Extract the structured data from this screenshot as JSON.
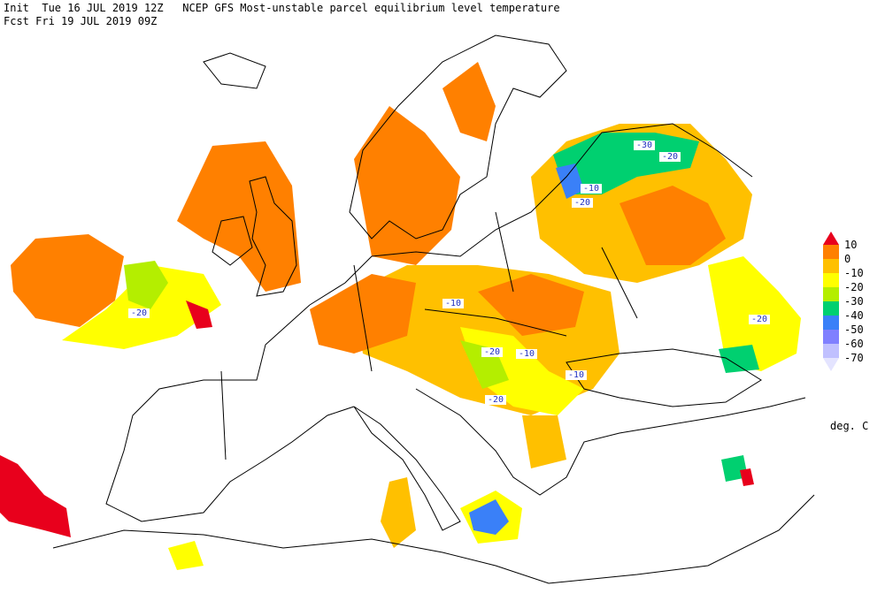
{
  "header": {
    "line1": "Init  Tue 16 JUL 2019 12Z   NCEP GFS Most-unstable parcel equilibrium level temperature",
    "line2": "Fcst Fri 19 JUL 2019 09Z"
  },
  "legend": {
    "levels": [
      10,
      0,
      -10,
      -20,
      -30,
      -40,
      -50,
      -60,
      -70
    ],
    "colors": [
      "#e8001c",
      "#ff8000",
      "#ffc000",
      "#ffff00",
      "#b4ee00",
      "#00d070",
      "#3a80f8",
      "#8080ff",
      "#c0c0ff",
      "#e4e4ff"
    ],
    "unit": "deg. C"
  },
  "contour_labels": [
    -30,
    -20,
    -10,
    -20,
    -20,
    -10,
    -20,
    -10,
    -10,
    -20,
    -20
  ]
}
